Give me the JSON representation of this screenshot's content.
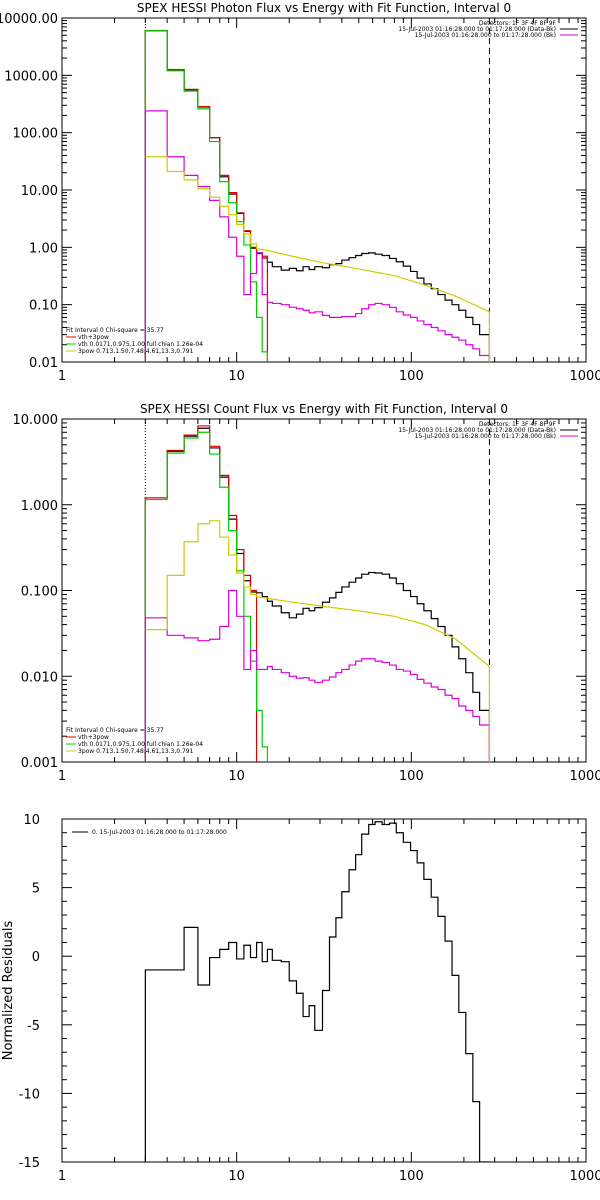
{
  "chart_data": [
    {
      "type": "line",
      "title": "SPEX HESSI Photon Flux vs Energy with Fit Function, Interval 0",
      "xscale": "log",
      "yscale": "log",
      "xlim": [
        1,
        1000
      ],
      "ylim": [
        0.01,
        10000
      ],
      "x_tick_labels": [
        "1",
        "10",
        "100",
        "1000"
      ],
      "y_tick_labels": [
        "0.01",
        "0.10",
        "1.00",
        "10.00",
        "100.00",
        "1000.00",
        "10000.00"
      ],
      "legend_top": [
        "Detectors: 1F 3F 4F 8F 9F",
        "15-Jul-2003 01:16:28.000 to 01:17:28.000 (Data-Bk)",
        "15-Jul-2003 01:16:28.000 to 01:17:28.000 (Bk)"
      ],
      "legend_bottom": [
        "Fit Interval 0   Chi-square = 35.77",
        "vth+3pow",
        "vth 0.0171,0.975,1.00  full chian 1.26e-04",
        "3pow 0.713,1.50,7.48,4.61,13.3,0.791"
      ],
      "vlines": [
        {
          "x": 3,
          "style": "dotted"
        },
        {
          "x": 280,
          "style": "dashed"
        }
      ],
      "series": [
        {
          "color": "#000000",
          "edges": [
            3,
            4,
            5,
            6,
            7,
            8,
            9,
            10,
            11,
            12,
            13,
            14,
            15,
            16,
            18,
            20,
            22,
            24,
            26,
            28,
            31,
            34,
            37,
            40,
            44,
            48,
            52,
            57,
            62,
            68,
            75,
            82,
            90,
            99,
            108,
            118,
            130,
            142,
            156,
            171,
            187,
            205,
            225,
            246,
            280
          ],
          "values": [
            6000,
            1250,
            560,
            280,
            82,
            17,
            8.5,
            3.9,
            1.9,
            0.97,
            0.78,
            0.65,
            0.55,
            0.46,
            0.4,
            0.43,
            0.39,
            0.46,
            0.41,
            0.46,
            0.44,
            0.5,
            0.52,
            0.6,
            0.66,
            0.72,
            0.78,
            0.8,
            0.76,
            0.72,
            0.64,
            0.56,
            0.47,
            0.38,
            0.29,
            0.23,
            0.19,
            0.15,
            0.12,
            0.1,
            0.08,
            0.06,
            0.045,
            0.03
          ]
        },
        {
          "color": "#e00000",
          "edges": [
            3,
            4,
            5,
            6,
            7,
            8,
            9,
            10,
            11,
            12,
            13,
            14,
            15
          ],
          "values": [
            6000,
            1250,
            570,
            285,
            82,
            18,
            9,
            4,
            1.95,
            1.0,
            0.8,
            0.7
          ]
        },
        {
          "color": "#00cc00",
          "edges": [
            3,
            4,
            5,
            6,
            7,
            8,
            9,
            10,
            11,
            12,
            13,
            14,
            15
          ],
          "values": [
            6000,
            1200,
            530,
            260,
            70,
            14,
            6,
            2.8,
            1.1,
            0.25,
            0.06,
            0.015
          ]
        },
        {
          "color": "#dd00dd",
          "edges": [
            3,
            4,
            5,
            6,
            7,
            8,
            9,
            10,
            11,
            12,
            13,
            14,
            15,
            16,
            18,
            20,
            22,
            24,
            26,
            28,
            31,
            34,
            37,
            40,
            44,
            48,
            52,
            57,
            62,
            68,
            75,
            82,
            90,
            99,
            108,
            118,
            130,
            142,
            156,
            171,
            187,
            205,
            225,
            246,
            280
          ],
          "values": [
            240,
            38,
            18,
            11.5,
            6.6,
            3.4,
            1.5,
            0.7,
            0.15,
            0.35,
            0.8,
            0.15,
            0.11,
            0.105,
            0.1,
            0.09,
            0.085,
            0.08,
            0.072,
            0.075,
            0.065,
            0.06,
            0.06,
            0.062,
            0.062,
            0.07,
            0.085,
            0.1,
            0.105,
            0.1,
            0.09,
            0.075,
            0.066,
            0.06,
            0.052,
            0.045,
            0.04,
            0.035,
            0.03,
            0.027,
            0.024,
            0.02,
            0.017,
            0.013
          ]
        }
      ],
      "fit_line": {
        "color": "#cccc00",
        "points": [
          [
            3,
            38
          ],
          [
            4,
            38
          ],
          [
            4,
            21
          ],
          [
            5,
            21
          ],
          [
            5,
            15
          ],
          [
            6,
            15
          ],
          [
            6,
            10.5
          ],
          [
            7,
            10.5
          ],
          [
            7,
            7.5
          ],
          [
            8,
            7.5
          ],
          [
            8,
            5.2
          ],
          [
            9,
            5.2
          ],
          [
            9,
            3.7
          ],
          [
            10,
            3.7
          ],
          [
            10,
            2.5
          ],
          [
            11,
            2.5
          ],
          [
            11,
            1.7
          ],
          [
            12,
            1.7
          ],
          [
            12,
            1.15
          ],
          [
            13,
            1.15
          ],
          [
            13,
            0.95
          ],
          [
            15,
            0.88
          ],
          [
            20,
            0.72
          ],
          [
            30,
            0.55
          ],
          [
            50,
            0.42
          ],
          [
            80,
            0.32
          ],
          [
            120,
            0.22
          ],
          [
            180,
            0.14
          ],
          [
            280,
            0.075
          ],
          [
            280,
            0.01
          ]
        ]
      }
    },
    {
      "type": "line",
      "title": "SPEX HESSI Count Flux vs Energy with Fit Function, Interval 0",
      "xscale": "log",
      "yscale": "log",
      "xlim": [
        1,
        1000
      ],
      "ylim": [
        0.001,
        10
      ],
      "x_tick_labels": [
        "1",
        "10",
        "100",
        "1000"
      ],
      "y_tick_labels": [
        "0.001",
        "0.010",
        "0.100",
        "1.000",
        "10.000"
      ],
      "legend_top": [
        "Detectors: 1F 3F 4F 8F 9F",
        "15-Jul-2003 01:16:28.000 to 01:17:28.000 (Data-Bk)",
        "15-Jul-2003 01:16:28.000 to 01:17:28.000 (Bk)"
      ],
      "legend_bottom": [
        "Fit Interval 0   Chi-square = 35.77",
        "vth+3pow",
        "vth 0.0171,0.975,1.00  full chian 1.26e-04",
        "3pow 0.713,1.50,7.48,4.61,13.3,0.791"
      ],
      "vlines": [
        {
          "x": 3,
          "style": "dotted"
        },
        {
          "x": 280,
          "style": "dashed"
        }
      ],
      "series": [
        {
          "color": "#000000",
          "edges": [
            3,
            4,
            5,
            6,
            7,
            8,
            9,
            10,
            11,
            12,
            13,
            14,
            15,
            16,
            18,
            20,
            22,
            24,
            26,
            28,
            31,
            34,
            37,
            40,
            44,
            48,
            52,
            57,
            62,
            68,
            75,
            82,
            90,
            99,
            108,
            118,
            130,
            142,
            156,
            171,
            187,
            205,
            225,
            246,
            280
          ],
          "values": [
            1.2,
            4.2,
            6.3,
            7.8,
            4.6,
            2.1,
            0.68,
            0.27,
            0.13,
            0.096,
            0.094,
            0.085,
            0.075,
            0.066,
            0.055,
            0.048,
            0.053,
            0.062,
            0.058,
            0.063,
            0.073,
            0.082,
            0.095,
            0.11,
            0.125,
            0.14,
            0.155,
            0.162,
            0.16,
            0.155,
            0.14,
            0.12,
            0.1,
            0.085,
            0.07,
            0.058,
            0.047,
            0.038,
            0.03,
            0.022,
            0.016,
            0.011,
            0.0065,
            0.004
          ]
        },
        {
          "color": "#e00000",
          "edges": [
            3,
            4,
            5,
            6,
            7,
            8,
            9,
            10,
            11,
            12,
            13
          ],
          "values": [
            1.2,
            4.3,
            6.5,
            8.3,
            4.8,
            2.2,
            0.75,
            0.3,
            0.15,
            0.1
          ]
        },
        {
          "color": "#00cc00",
          "edges": [
            3,
            4,
            5,
            6,
            7,
            8,
            9,
            10,
            11,
            12,
            13,
            14,
            15
          ],
          "values": [
            1.15,
            4.0,
            6.0,
            7.0,
            3.9,
            1.6,
            0.5,
            0.17,
            0.05,
            0.015,
            0.004,
            0.0015
          ]
        },
        {
          "color": "#dd00dd",
          "edges": [
            3,
            4,
            5,
            6,
            7,
            8,
            9,
            10,
            11,
            12,
            13,
            14,
            15,
            16,
            18,
            20,
            22,
            24,
            26,
            28,
            31,
            34,
            37,
            40,
            44,
            48,
            52,
            57,
            62,
            68,
            75,
            82,
            90,
            99,
            108,
            118,
            130,
            142,
            156,
            171,
            187,
            205,
            225,
            246,
            280
          ],
          "values": [
            0.048,
            0.03,
            0.028,
            0.026,
            0.027,
            0.038,
            0.1,
            0.05,
            0.012,
            0.02,
            0.012,
            0.012,
            0.013,
            0.012,
            0.011,
            0.01,
            0.0095,
            0.0096,
            0.009,
            0.0085,
            0.009,
            0.0098,
            0.011,
            0.012,
            0.0135,
            0.015,
            0.016,
            0.016,
            0.015,
            0.0145,
            0.0135,
            0.012,
            0.0115,
            0.0105,
            0.0092,
            0.0083,
            0.0075,
            0.007,
            0.006,
            0.0055,
            0.0045,
            0.004,
            0.0034,
            0.0027
          ]
        }
      ],
      "fit_line": {
        "color": "#cccc00",
        "points": [
          [
            3,
            0.035
          ],
          [
            4,
            0.035
          ],
          [
            4,
            0.15
          ],
          [
            5,
            0.15
          ],
          [
            5,
            0.37
          ],
          [
            6,
            0.37
          ],
          [
            6,
            0.6
          ],
          [
            7,
            0.6
          ],
          [
            7,
            0.65
          ],
          [
            8,
            0.65
          ],
          [
            8,
            0.42
          ],
          [
            9,
            0.42
          ],
          [
            9,
            0.26
          ],
          [
            10,
            0.26
          ],
          [
            10,
            0.16
          ],
          [
            11,
            0.16
          ],
          [
            11,
            0.11
          ],
          [
            12,
            0.11
          ],
          [
            12,
            0.09
          ],
          [
            13,
            0.09
          ],
          [
            13,
            0.085
          ],
          [
            20,
            0.074
          ],
          [
            30,
            0.066
          ],
          [
            50,
            0.058
          ],
          [
            80,
            0.05
          ],
          [
            120,
            0.04
          ],
          [
            180,
            0.027
          ],
          [
            280,
            0.013
          ],
          [
            280,
            0.001
          ]
        ]
      }
    },
    {
      "type": "line",
      "title": "",
      "xscale": "log",
      "yscale": "linear",
      "xlim": [
        1,
        1000
      ],
      "ylim": [
        -15,
        10
      ],
      "x_tick_labels": [
        "1",
        "10",
        "100",
        "1000"
      ],
      "y_tick_labels": [
        "-15",
        "-10",
        "-5",
        "0",
        "5",
        "10"
      ],
      "ylabel": "Normalized Residuals",
      "legend_top": [
        "0. 15-Jul-2003 01:16:28.000 to 01:17:28.000"
      ],
      "series": [
        {
          "color": "#000000",
          "edges": [
            3,
            4,
            5,
            6,
            7,
            8,
            9,
            10,
            11,
            12,
            13,
            14,
            15,
            16,
            18,
            20,
            22,
            24,
            26,
            28,
            31,
            34,
            37,
            40,
            44,
            48,
            52,
            57,
            62,
            68,
            75,
            82,
            90,
            99,
            108,
            118,
            130,
            142,
            156,
            171,
            187,
            205,
            225,
            246,
            280
          ],
          "values": [
            -1.0,
            -1.0,
            2.1,
            -2.1,
            -0.1,
            0.5,
            1.0,
            -0.2,
            0.8,
            -0.1,
            1.0,
            -0.4,
            0.5,
            -0.3,
            -0.4,
            -1.8,
            -2.7,
            -4.4,
            -3.6,
            -5.4,
            -2.5,
            1.4,
            2.8,
            4.7,
            6.3,
            7.4,
            8.9,
            9.6,
            9.8,
            9.6,
            9.7,
            9.0,
            8.3,
            7.7,
            6.8,
            5.6,
            4.3,
            2.9,
            1.1,
            -1.4,
            -4.1,
            -7.1,
            -10.6,
            -16
          ]
        }
      ]
    }
  ]
}
